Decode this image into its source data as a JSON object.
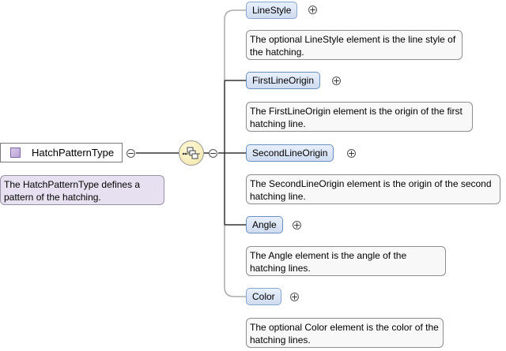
{
  "root": {
    "label": "HatchPatternType",
    "note": "The HatchPatternType defines a pattern of the hatching."
  },
  "compositor": {
    "kind": "sequence",
    "icon": "sequence-compositor-icon"
  },
  "elements": [
    {
      "name": "LineStyle",
      "optional": true,
      "note": "The optional LineStyle element is the line style of the hatching."
    },
    {
      "name": "FirstLineOrigin",
      "optional": false,
      "note": "The FirstLineOrigin element is the origin of the first hatching line."
    },
    {
      "name": "SecondLineOrigin",
      "optional": false,
      "note": "The SecondLineOrigin element is the origin of the second hatching line."
    },
    {
      "name": "Angle",
      "optional": false,
      "note": "The Angle element is the angle of the hatching lines."
    },
    {
      "name": "Color",
      "optional": true,
      "note": "The optional Color element is the color of the hatching lines."
    }
  ],
  "toggles": {
    "expand": "+",
    "collapse": "−"
  },
  "colors": {
    "required_line": "#333333",
    "optional_line": "#aaaaaa"
  }
}
